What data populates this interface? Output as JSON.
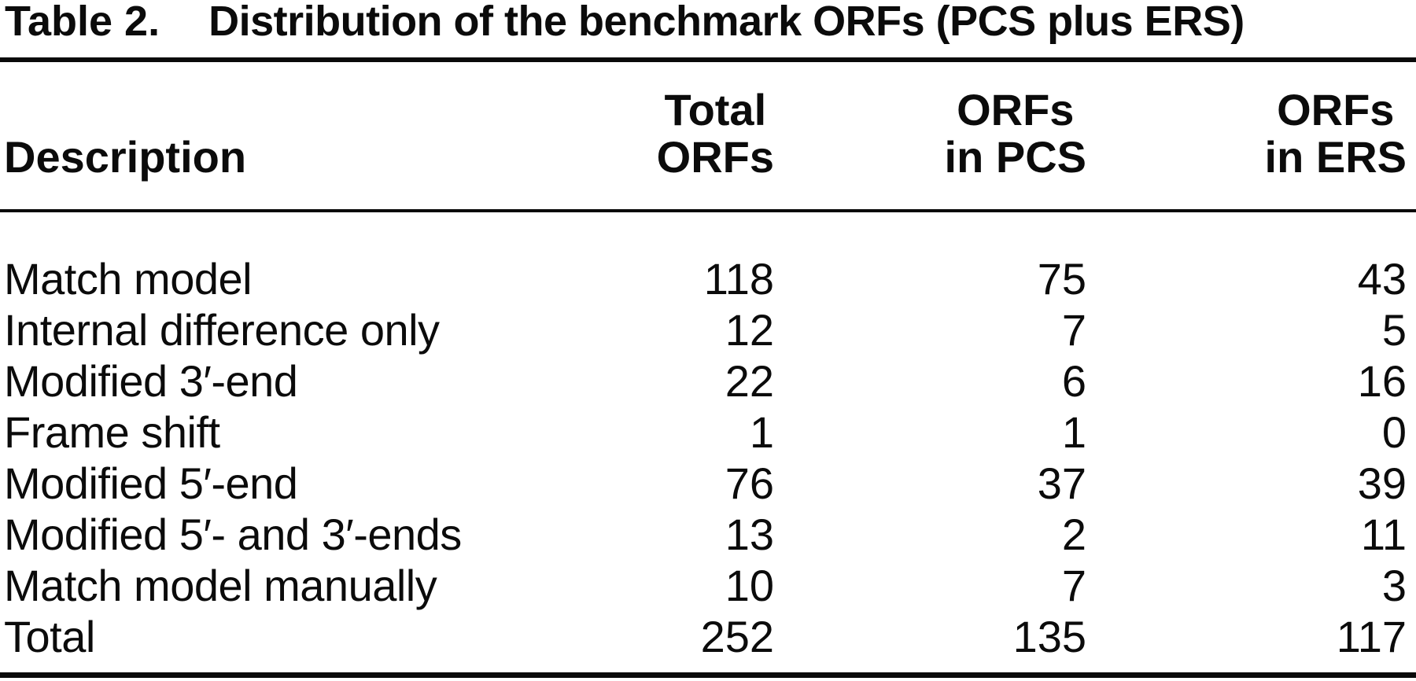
{
  "title": {
    "label": "Table 2.",
    "caption": "Distribution of the benchmark ORFs (PCS plus ERS)"
  },
  "table": {
    "columns": {
      "description": "Description",
      "total": {
        "line1": "Total",
        "line2": "ORFs"
      },
      "pcs": {
        "line1": "ORFs",
        "line2": "in PCS"
      },
      "ers": {
        "line1": "ORFs",
        "line2": "in ERS"
      }
    },
    "rows": [
      {
        "description": "Match model",
        "total": "118",
        "pcs": "75",
        "ers": "43"
      },
      {
        "description": "Internal difference only",
        "total": "12",
        "pcs": "7",
        "ers": "5"
      },
      {
        "description": "Modified 3′-end",
        "total": "22",
        "pcs": "6",
        "ers": "16"
      },
      {
        "description": "Frame shift",
        "total": "1",
        "pcs": "1",
        "ers": "0"
      },
      {
        "description": "Modified 5′-end",
        "total": "76",
        "pcs": "37",
        "ers": "39"
      },
      {
        "description": "Modified 5′- and 3′-ends",
        "total": "13",
        "pcs": "2",
        "ers": "11"
      },
      {
        "description": "Match model manually",
        "total": "10",
        "pcs": "7",
        "ers": "3"
      },
      {
        "description": "Total",
        "total": "252",
        "pcs": "135",
        "ers": "117"
      }
    ]
  },
  "colors": {
    "text": "#0b0b0b",
    "rule": "#0a0a0a",
    "background": "#ffffff"
  }
}
